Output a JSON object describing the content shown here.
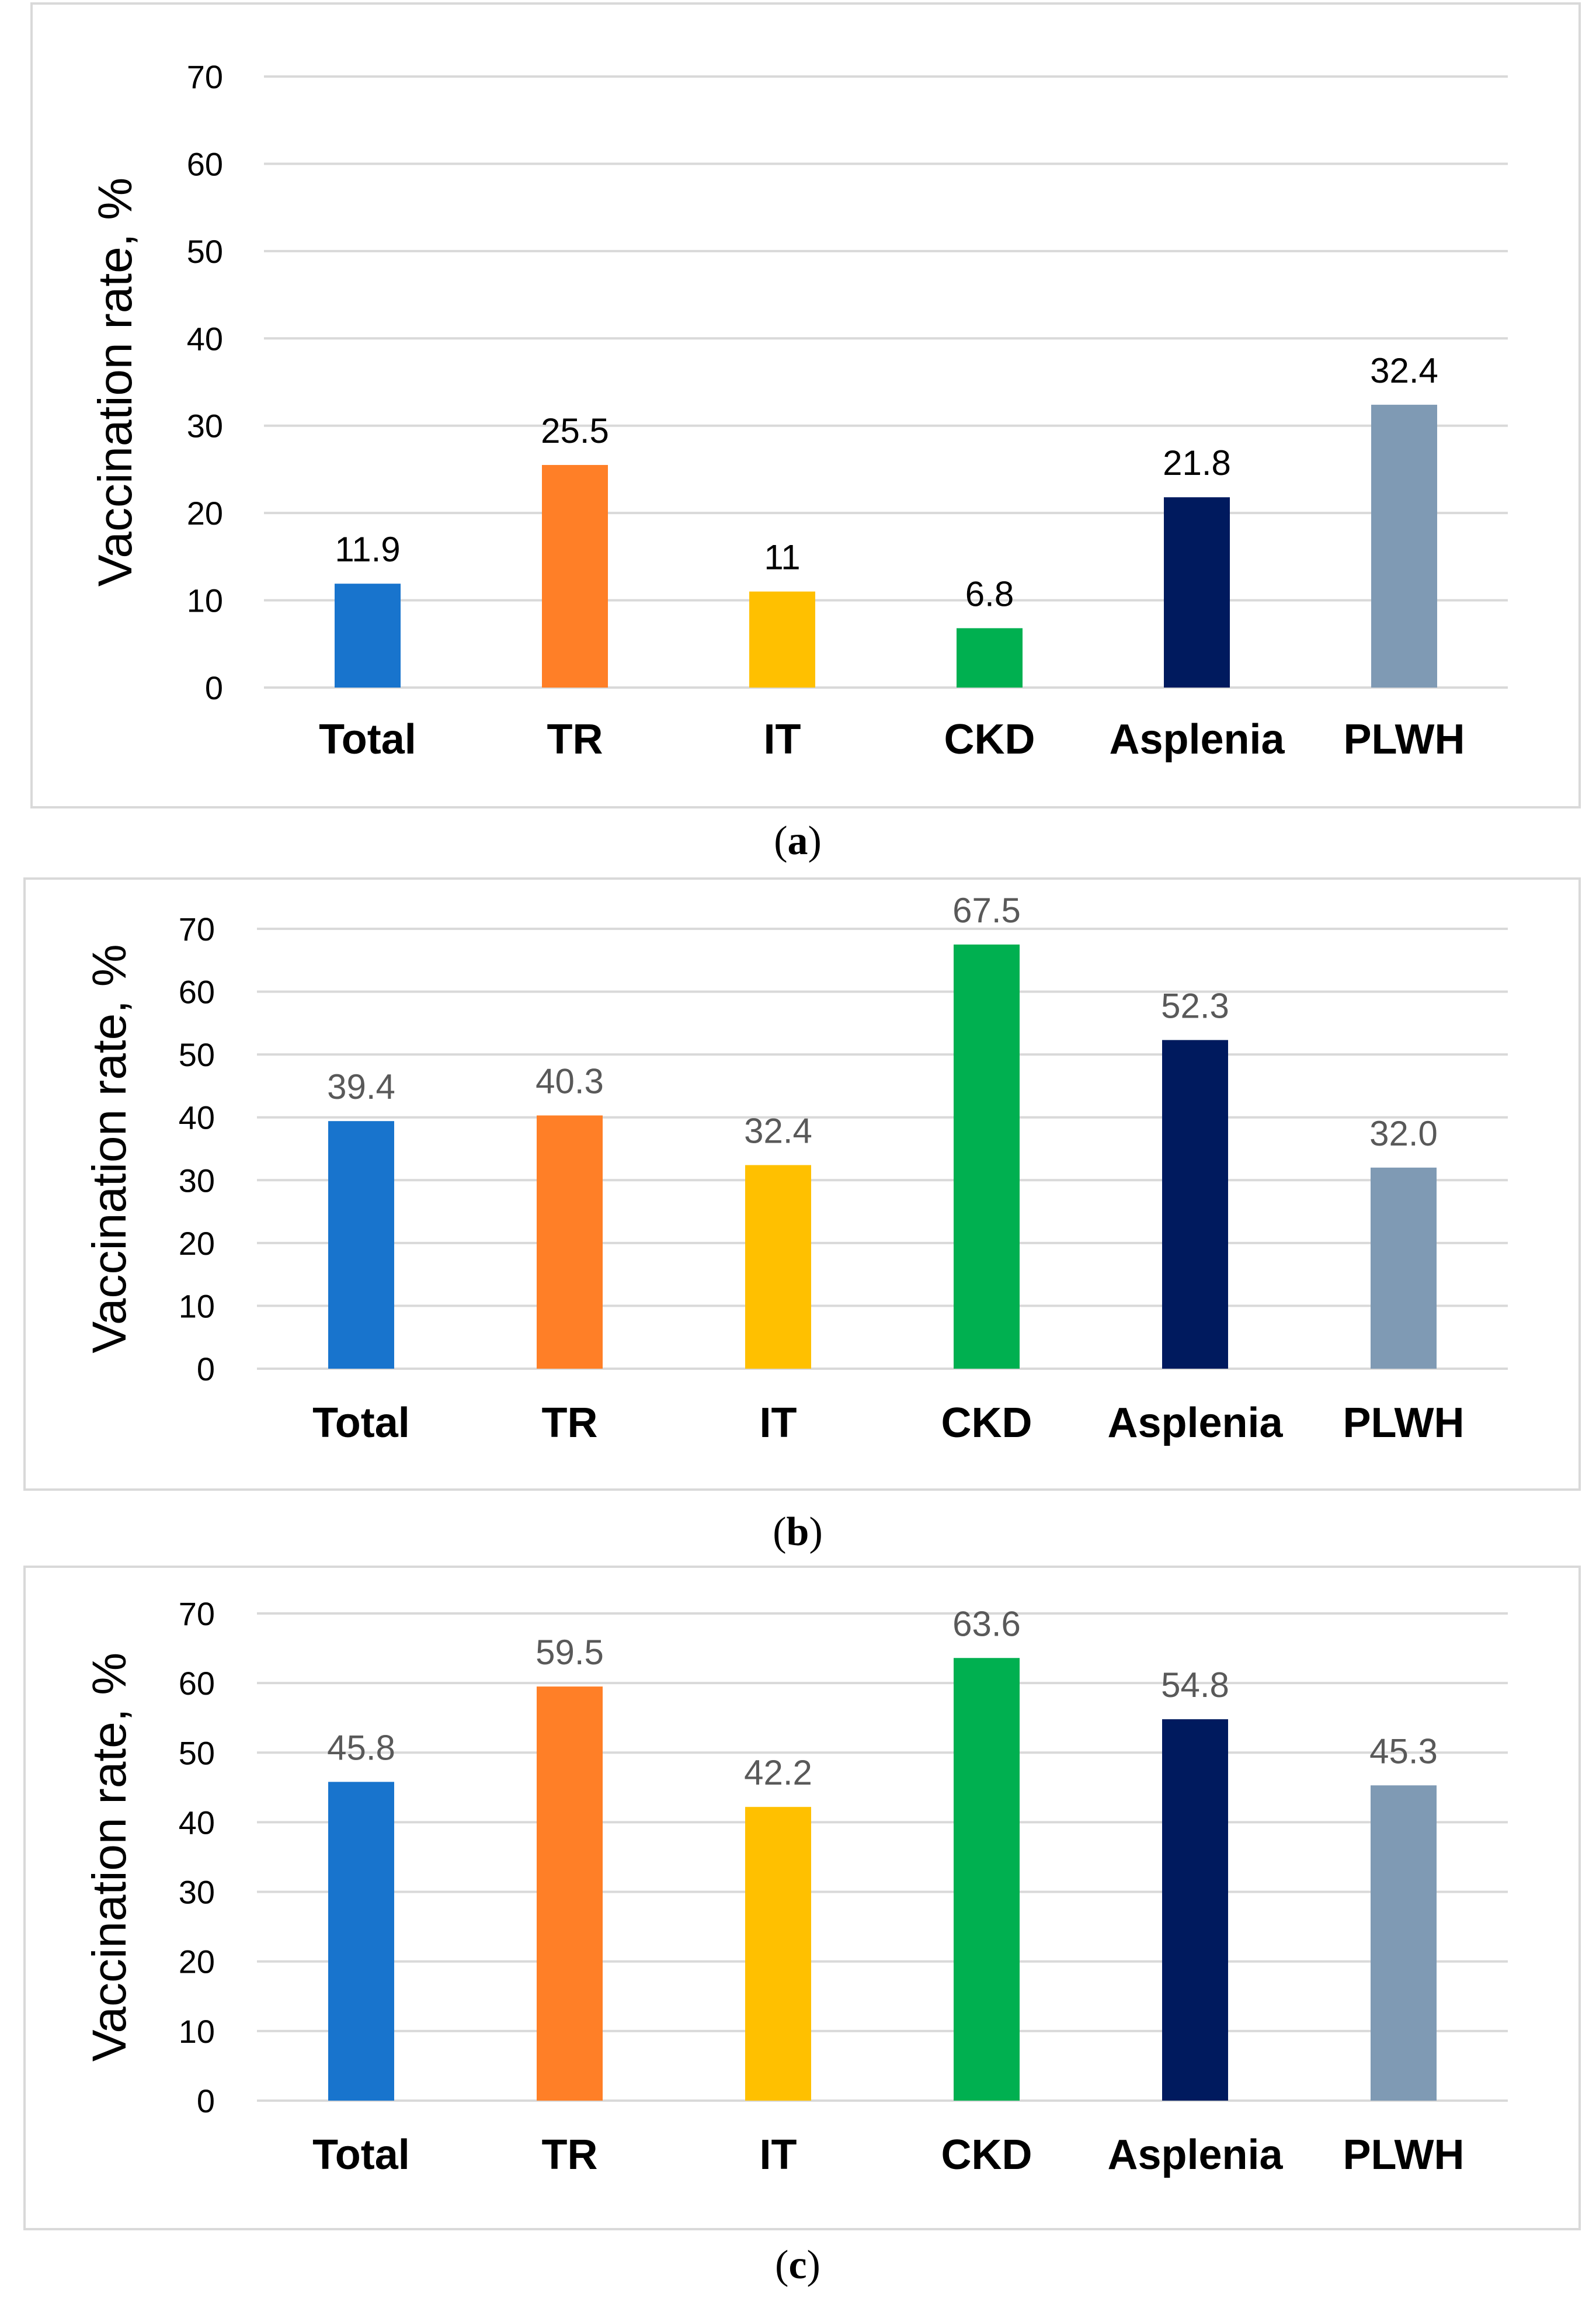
{
  "colors": {
    "Total": "#1874cd",
    "TR": "#ff7f27",
    "IT": "#ffc000",
    "CKD": "#00b050",
    "Asplenia": "#001a5e",
    "PLWH": "#7f9ab4",
    "grid": "#d9d9d9"
  },
  "chart_data": [
    {
      "panel": "a",
      "caption_letter": "a",
      "type": "bar",
      "categories": [
        "Total",
        "TR",
        "IT",
        "CKD",
        "Asplenia",
        "PLWH"
      ],
      "values": [
        11.9,
        25.5,
        11,
        6.8,
        21.8,
        32.4
      ],
      "value_labels": [
        "11.9",
        "25.5",
        "11",
        "6.8",
        "21.8",
        "32.4"
      ],
      "label_color": "#000000",
      "ylabel": "Vaccination rate, %",
      "ylim": [
        0,
        70
      ],
      "yticks": [
        "0",
        "10",
        "20",
        "30",
        "40",
        "50",
        "60",
        "70"
      ],
      "grid": true
    },
    {
      "panel": "b",
      "caption_letter": "b",
      "type": "bar",
      "categories": [
        "Total",
        "TR",
        "IT",
        "CKD",
        "Asplenia",
        "PLWH"
      ],
      "values": [
        39.4,
        40.3,
        32.4,
        67.5,
        52.3,
        32.0
      ],
      "value_labels": [
        "39.4",
        "40.3",
        "32.4",
        "67.5",
        "52.3",
        "32.0"
      ],
      "label_color": "#595959",
      "ylabel": "Vaccination rate, %",
      "ylim": [
        0,
        70
      ],
      "yticks": [
        "0",
        "10",
        "20",
        "30",
        "40",
        "50",
        "60",
        "70"
      ],
      "grid": true
    },
    {
      "panel": "c",
      "caption_letter": "c",
      "type": "bar",
      "categories": [
        "Total",
        "TR",
        "IT",
        "CKD",
        "Asplenia",
        "PLWH"
      ],
      "values": [
        45.8,
        59.5,
        42.2,
        63.6,
        54.8,
        45.3
      ],
      "value_labels": [
        "45.8",
        "59.5",
        "42.2",
        "63.6",
        "54.8",
        "45.3"
      ],
      "label_color": "#595959",
      "ylabel": "Vaccination rate, %",
      "ylim": [
        0,
        70
      ],
      "yticks": [
        "0",
        "10",
        "20",
        "30",
        "40",
        "50",
        "60",
        "70"
      ],
      "grid": true
    }
  ]
}
